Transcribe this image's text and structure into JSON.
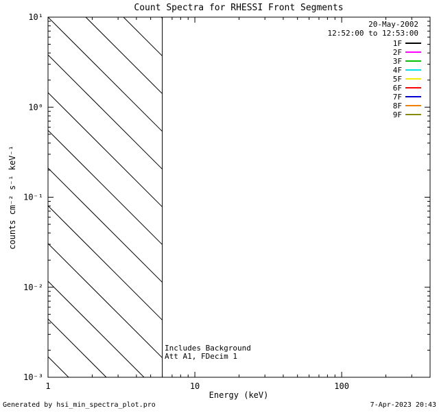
{
  "title": "Count Spectra for RHESSI Front Segments",
  "legend": {
    "date": "20-May-2002",
    "time_range": "12:52:00 to 12:53:00",
    "position": "top-right"
  },
  "annotations": [
    "Includes Background",
    "Att A1, FDecim 1"
  ],
  "footer": {
    "left": "Generated by hsi_min_spectra_plot.pro",
    "right": "7-Apr-2023 20:43"
  },
  "chart_data": {
    "type": "line",
    "title": "Count Spectra for RHESSI Front Segments",
    "xlabel": "Energy (keV)",
    "ylabel": "counts cm⁻² s⁻¹ keV⁻¹",
    "x_scale": "log",
    "y_scale": "log",
    "xlim": [
      1,
      400
    ],
    "ylim": [
      0.001,
      10
    ],
    "grid": false,
    "x_ticks": [
      {
        "value": 1,
        "label": "1"
      },
      {
        "value": 10,
        "label": "10"
      },
      {
        "value": 100,
        "label": "100"
      }
    ],
    "y_ticks": [
      {
        "value": 0.001,
        "label": "10⁻³"
      },
      {
        "value": 0.01,
        "label": "10⁻²"
      },
      {
        "value": 0.1,
        "label": "10⁻¹"
      },
      {
        "value": 1,
        "label": "10⁰"
      },
      {
        "value": 10,
        "label": "10¹"
      }
    ],
    "hatched_region": {
      "x_min": 1,
      "x_max": 6,
      "style": "diagonal-line-fill"
    },
    "vertical_line_x": 6,
    "series": [
      {
        "name": "1F",
        "color": "#000000",
        "values": []
      },
      {
        "name": "2F",
        "color": "#ff00ff",
        "values": []
      },
      {
        "name": "3F",
        "color": "#00c000",
        "values": []
      },
      {
        "name": "4F",
        "color": "#00e0e8",
        "values": []
      },
      {
        "name": "5F",
        "color": "#f0f000",
        "values": []
      },
      {
        "name": "6F",
        "color": "#ff0000",
        "values": []
      },
      {
        "name": "7F",
        "color": "#0000d0",
        "values": []
      },
      {
        "name": "8F",
        "color": "#f08000",
        "values": []
      },
      {
        "name": "9F",
        "color": "#8a8a00",
        "values": []
      }
    ],
    "legend_position": "top-right",
    "notes": "No spectral curves plotted; diagonally hatched region spans 1 to 6 keV with vertical boundary line at 6 keV"
  }
}
